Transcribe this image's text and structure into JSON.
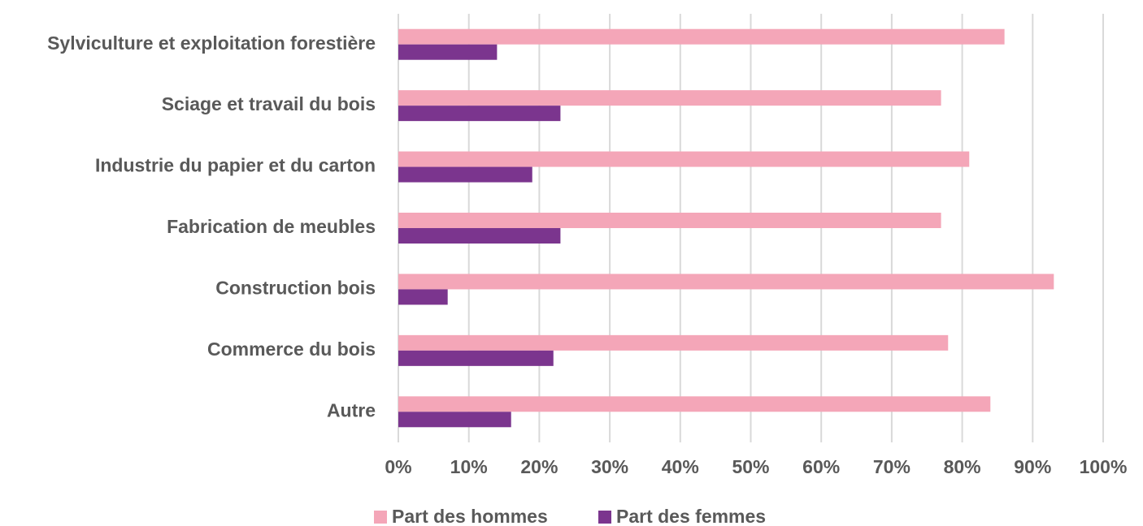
{
  "chart_data": {
    "type": "hbar",
    "categories": [
      "Sylviculture et exploitation forestière",
      "Sciage et travail du bois",
      "Industrie du papier et du carton",
      "Fabrication de meubles",
      "Construction bois",
      "Commerce du bois",
      "Autre"
    ],
    "series": [
      {
        "name": "Part des hommes",
        "color": "#f4a6b8",
        "values": [
          86,
          77,
          81,
          77,
          93,
          78,
          84
        ]
      },
      {
        "name": "Part des femmes",
        "color": "#7b358e",
        "values": [
          14,
          23,
          19,
          23,
          7,
          22,
          16
        ]
      }
    ],
    "xlim": [
      0,
      100
    ],
    "xticks": [
      {
        "value": 0,
        "label": "0%"
      },
      {
        "value": 10,
        "label": "10%"
      },
      {
        "value": 20,
        "label": "20%"
      },
      {
        "value": 30,
        "label": "30%"
      },
      {
        "value": 40,
        "label": "40%"
      },
      {
        "value": 50,
        "label": "50%"
      },
      {
        "value": 60,
        "label": "60%"
      },
      {
        "value": 70,
        "label": "70%"
      },
      {
        "value": 80,
        "label": "80%"
      },
      {
        "value": 90,
        "label": "90%"
      },
      {
        "value": 100,
        "label": "100%"
      }
    ],
    "grid": true,
    "legend": "bottom"
  }
}
